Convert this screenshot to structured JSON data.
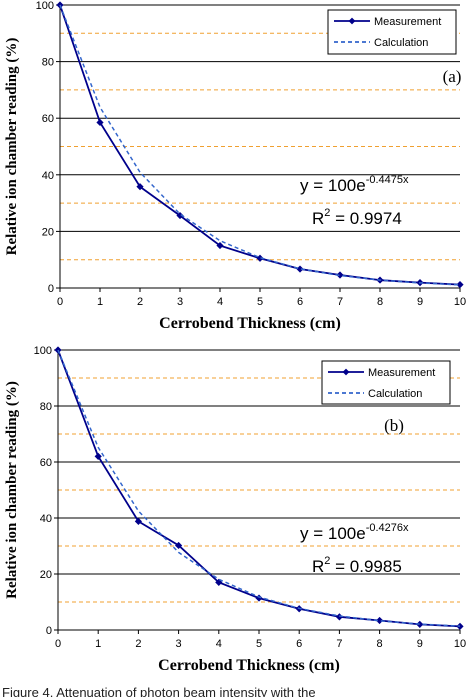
{
  "chart_data": [
    {
      "type": "line",
      "panel_label": "(a)",
      "xlabel": "Cerrobend Thickness (cm)",
      "ylabel": "Relative ion chamber reading (%)",
      "xlim": [
        0,
        10
      ],
      "ylim": [
        0,
        100
      ],
      "x_ticks": [
        "0",
        "1",
        "2",
        "3",
        "4",
        "5",
        "6",
        "7",
        "8",
        "9",
        "10"
      ],
      "y_ticks": [
        "0",
        "20",
        "40",
        "60",
        "80",
        "100"
      ],
      "grid": "major solid, minor dashed orange",
      "legend_position": "top-right",
      "series": [
        {
          "name": "Measurement",
          "style": "solid-with-diamond-markers",
          "color": "#00008b",
          "x": [
            0,
            1,
            2,
            3,
            4,
            5,
            6,
            7,
            8,
            9,
            10
          ],
          "values": [
            100,
            58.5,
            35.8,
            25.6,
            15.0,
            10.5,
            6.7,
            4.6,
            2.8,
            1.9,
            1.2
          ]
        },
        {
          "name": "Calculation",
          "style": "dashed",
          "color": "#3366cc",
          "x": [
            0,
            1,
            2,
            3,
            4,
            5,
            6,
            7,
            8,
            9,
            10
          ],
          "values": [
            100,
            63.9,
            40.9,
            26.1,
            16.7,
            10.7,
            6.8,
            4.4,
            2.8,
            1.8,
            1.1
          ]
        }
      ],
      "equation_base": "y = 100e",
      "equation_exp": "-0.4475x",
      "r2_label": "R",
      "r2_sup": "2",
      "r2_value": " = 0.9974"
    },
    {
      "type": "line",
      "panel_label": "(b)",
      "xlabel": "Cerrobend Thickness (cm)",
      "ylabel": "Relative ion chamber reading (%)",
      "xlim": [
        0,
        10
      ],
      "ylim": [
        0,
        100
      ],
      "x_ticks": [
        "0",
        "1",
        "2",
        "3",
        "4",
        "5",
        "6",
        "7",
        "8",
        "9",
        "10"
      ],
      "y_ticks": [
        "0",
        "20",
        "40",
        "60",
        "80",
        "100"
      ],
      "grid": "major solid, minor dashed orange",
      "legend_position": "top-right",
      "series": [
        {
          "name": "Measurement",
          "style": "solid-with-diamond-markers",
          "color": "#00008b",
          "x": [
            0,
            1,
            2,
            3,
            4,
            5,
            6,
            7,
            8,
            9,
            10
          ],
          "values": [
            100,
            62.0,
            38.8,
            30.2,
            17.0,
            11.4,
            7.6,
            4.7,
            3.4,
            2.0,
            1.3
          ]
        },
        {
          "name": "Calculation",
          "style": "dashed",
          "color": "#3366cc",
          "x": [
            0,
            1,
            2,
            3,
            4,
            5,
            6,
            7,
            8,
            9,
            10
          ],
          "values": [
            100,
            65.2,
            42.5,
            27.7,
            18.1,
            11.8,
            7.7,
            5.0,
            3.3,
            2.1,
            1.4
          ]
        }
      ],
      "equation_base": "y = 100e",
      "equation_exp": "-0.4276x",
      "r2_label": "R",
      "r2_sup": "2",
      "r2_value": " = 0.9985"
    }
  ],
  "caption": "Figure 4. Attenuation of photon beam intensity with the"
}
